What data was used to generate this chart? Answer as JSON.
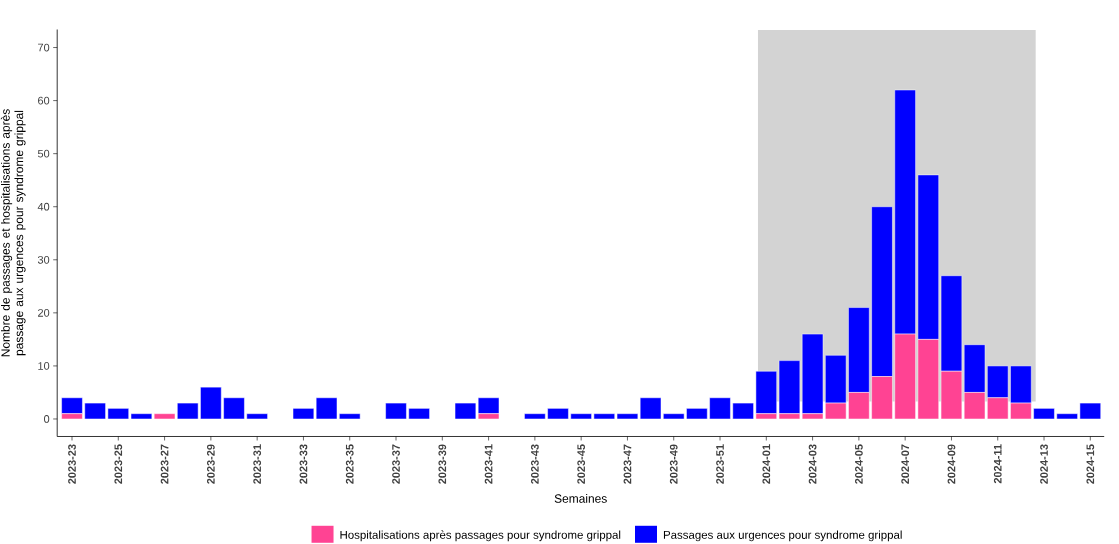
{
  "chart_data": {
    "type": "bar",
    "stacked": true,
    "xlabel": "Semaines",
    "ylabel": "Nombre de passages et hospitalisations après passage aux urgences pour syndrome grippal",
    "categories": [
      "2023-23",
      null,
      "2023-25",
      null,
      "2023-27",
      null,
      "2023-29",
      null,
      "2023-31",
      null,
      "2023-33",
      null,
      "2023-35",
      null,
      "2023-37",
      null,
      "2023-39",
      null,
      "2023-41",
      null,
      "2023-43",
      null,
      "2023-45",
      null,
      "2023-47",
      null,
      "2023-49",
      null,
      "2023-51",
      null,
      "2024-01",
      null,
      "2024-03",
      null,
      "2024-05",
      null,
      "2024-07",
      null,
      "2024-09",
      null,
      "2024-11",
      null,
      "2024-13",
      null,
      "2024-15"
    ],
    "series": [
      {
        "name": "Hospitalisations après passages pour syndrome grippal",
        "color": "#ff4393",
        "values": [
          1,
          0,
          0,
          0,
          1,
          0,
          0,
          0,
          0,
          null,
          0,
          0,
          0,
          null,
          0,
          0,
          null,
          0,
          1,
          null,
          0,
          0,
          0,
          0,
          0,
          0,
          0,
          0,
          0,
          0,
          1,
          1,
          1,
          3,
          5,
          8,
          16,
          15,
          9,
          5,
          4,
          3,
          0,
          0,
          0
        ]
      },
      {
        "name": "Passages aux urgences pour syndrome grippal",
        "color": "#0000ff",
        "values": [
          3,
          3,
          2,
          1,
          0,
          3,
          6,
          4,
          1,
          null,
          2,
          4,
          1,
          null,
          3,
          2,
          null,
          3,
          3,
          null,
          1,
          2,
          1,
          1,
          1,
          4,
          1,
          2,
          4,
          3,
          8,
          10,
          15,
          9,
          16,
          32,
          46,
          31,
          18,
          9,
          6,
          7,
          2,
          1,
          3
        ]
      }
    ],
    "ylim": [
      -3.3,
      73.4
    ],
    "yticks": [
      0,
      10,
      20,
      30,
      40,
      50,
      60,
      70
    ],
    "grid": false,
    "legend": "bottom"
  }
}
